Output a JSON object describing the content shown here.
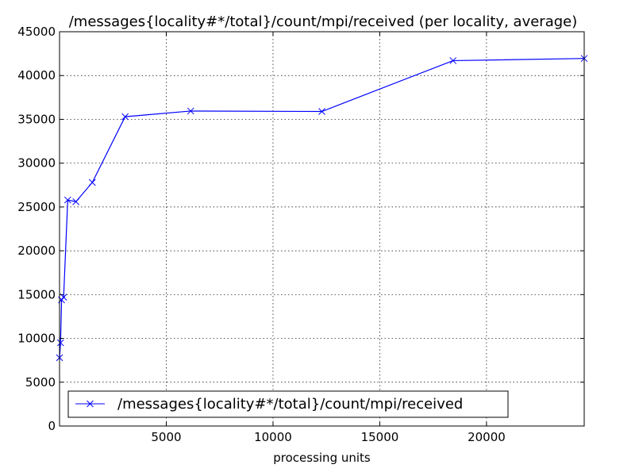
{
  "chart_data": {
    "type": "line",
    "title": "/messages{locality#*/total}/count/mpi/received (per locality, average)",
    "xlabel": "processing units",
    "ylabel": "",
    "xlim": [
      0,
      24576
    ],
    "ylim": [
      0,
      45000
    ],
    "grid": true,
    "legend_position": "lower-left",
    "x_ticks": [
      5000,
      10000,
      15000,
      20000
    ],
    "x_tick_labels": [
      "5000",
      "10000",
      "15000",
      "20000"
    ],
    "y_ticks": [
      0,
      5000,
      10000,
      15000,
      20000,
      25000,
      30000,
      35000,
      40000,
      45000
    ],
    "y_tick_labels": [
      "0",
      "5000",
      "10000",
      "15000",
      "20000",
      "25000",
      "30000",
      "35000",
      "40000",
      "45000"
    ],
    "series": [
      {
        "name": "/messages{locality#*/total}/count/mpi/received",
        "color": "#0000ff",
        "marker": "x",
        "x": [
          1,
          48,
          96,
          192,
          384,
          768,
          1536,
          3072,
          6144,
          12288,
          18432,
          24576
        ],
        "y": [
          7800,
          9500,
          14400,
          14700,
          25800,
          25600,
          27800,
          35300,
          35950,
          35900,
          41700,
          41950
        ]
      }
    ]
  }
}
